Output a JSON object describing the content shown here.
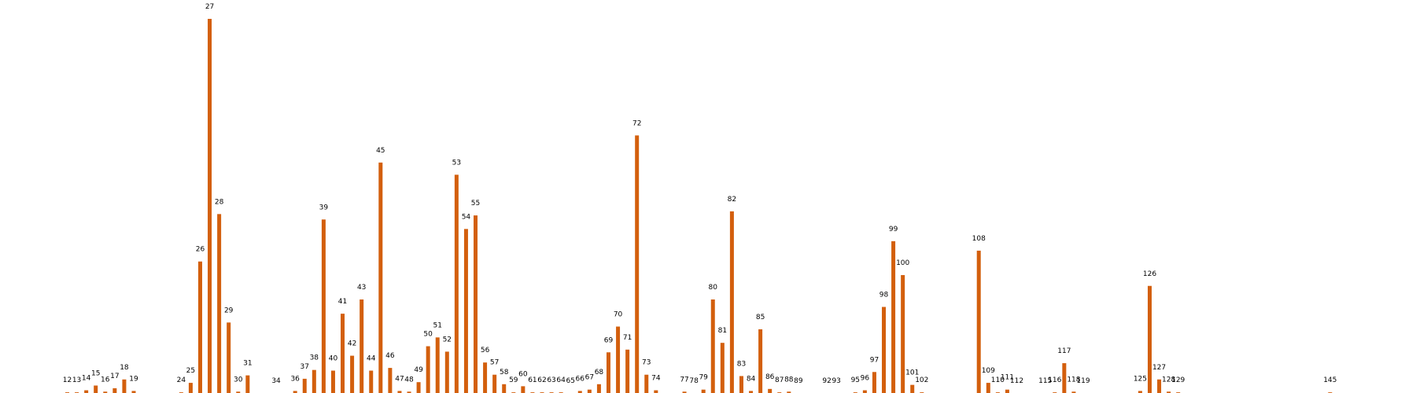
{
  "chart_data": {
    "type": "bar",
    "color": "#d35f0d",
    "title": "",
    "xlabel": "",
    "ylabel": "",
    "axes": "hidden",
    "grid": false,
    "legend": "none",
    "x_range": [
      6,
      152
    ],
    "points": [
      {
        "label": "12",
        "value": 0.5
      },
      {
        "label": "13",
        "value": 0.5
      },
      {
        "label": "14",
        "value": 2
      },
      {
        "label": "15",
        "value": 5.5
      },
      {
        "label": "16",
        "value": 1
      },
      {
        "label": "17",
        "value": 3.5
      },
      {
        "label": "18",
        "value": 10
      },
      {
        "label": "19",
        "value": 1.5
      },
      {
        "label": "24",
        "value": 0.5
      },
      {
        "label": "25",
        "value": 7.5
      },
      {
        "label": "26",
        "value": 97
      },
      {
        "label": "27",
        "value": 276
      },
      {
        "label": "28",
        "value": 132
      },
      {
        "label": "29",
        "value": 52
      },
      {
        "label": "30",
        "value": 1
      },
      {
        "label": "31",
        "value": 13
      },
      {
        "label": "34",
        "value": 0
      },
      {
        "label": "36",
        "value": 1.5
      },
      {
        "label": "37",
        "value": 10.5
      },
      {
        "label": "38",
        "value": 17
      },
      {
        "label": "39",
        "value": 128
      },
      {
        "label": "40",
        "value": 16.5
      },
      {
        "label": "41",
        "value": 58.5
      },
      {
        "label": "42",
        "value": 27.5
      },
      {
        "label": "43",
        "value": 69
      },
      {
        "label": "44",
        "value": 16.5
      },
      {
        "label": "45",
        "value": 170
      },
      {
        "label": "46",
        "value": 18.5
      },
      {
        "label": "47",
        "value": 1.5
      },
      {
        "label": "48",
        "value": 1
      },
      {
        "label": "49",
        "value": 8
      },
      {
        "label": "50",
        "value": 34.5
      },
      {
        "label": "51",
        "value": 41
      },
      {
        "label": "52",
        "value": 30.5
      },
      {
        "label": "53",
        "value": 161
      },
      {
        "label": "54",
        "value": 121
      },
      {
        "label": "55",
        "value": 131
      },
      {
        "label": "56",
        "value": 22.5
      },
      {
        "label": "57",
        "value": 13.5
      },
      {
        "label": "58",
        "value": 6.5
      },
      {
        "label": "59",
        "value": 0.5
      },
      {
        "label": "60",
        "value": 5
      },
      {
        "label": "61",
        "value": 0.5
      },
      {
        "label": "62",
        "value": 0.5
      },
      {
        "label": "63",
        "value": 0.5
      },
      {
        "label": "64",
        "value": 0.5
      },
      {
        "label": "65",
        "value": 0
      },
      {
        "label": "66",
        "value": 1.5
      },
      {
        "label": "67",
        "value": 2.5
      },
      {
        "label": "68",
        "value": 6.5
      },
      {
        "label": "69",
        "value": 30
      },
      {
        "label": "70",
        "value": 49
      },
      {
        "label": "71",
        "value": 32
      },
      {
        "label": "72",
        "value": 190
      },
      {
        "label": "73",
        "value": 13.5
      },
      {
        "label": "74",
        "value": 2
      },
      {
        "label": "77",
        "value": 1
      },
      {
        "label": "78",
        "value": 0
      },
      {
        "label": "79",
        "value": 2.5
      },
      {
        "label": "80",
        "value": 69
      },
      {
        "label": "81",
        "value": 37
      },
      {
        "label": "82",
        "value": 134
      },
      {
        "label": "83",
        "value": 12.5
      },
      {
        "label": "84",
        "value": 1.5
      },
      {
        "label": "85",
        "value": 47
      },
      {
        "label": "86",
        "value": 3
      },
      {
        "label": "87",
        "value": 0.5
      },
      {
        "label": "88",
        "value": 1
      },
      {
        "label": "89",
        "value": 0
      },
      {
        "label": "92",
        "value": 0
      },
      {
        "label": "93",
        "value": 0
      },
      {
        "label": "95",
        "value": 0.5
      },
      {
        "label": "96",
        "value": 2
      },
      {
        "label": "97",
        "value": 15.5
      },
      {
        "label": "98",
        "value": 63.5
      },
      {
        "label": "99",
        "value": 112
      },
      {
        "label": "100",
        "value": 87
      },
      {
        "label": "101",
        "value": 6
      },
      {
        "label": "102",
        "value": 0.5
      },
      {
        "label": "108",
        "value": 105
      },
      {
        "label": "109",
        "value": 7.5
      },
      {
        "label": "110",
        "value": 0.5
      },
      {
        "label": "111",
        "value": 2.5
      },
      {
        "label": "112",
        "value": 0
      },
      {
        "label": "115",
        "value": 0
      },
      {
        "label": "116",
        "value": 0.5
      },
      {
        "label": "117",
        "value": 22
      },
      {
        "label": "118",
        "value": 1
      },
      {
        "label": "119",
        "value": 0
      },
      {
        "label": "125",
        "value": 1.5
      },
      {
        "label": "126",
        "value": 79
      },
      {
        "label": "127",
        "value": 10
      },
      {
        "label": "128",
        "value": 1
      },
      {
        "label": "129",
        "value": 0.5
      },
      {
        "label": "145",
        "value": 0.5
      }
    ]
  }
}
